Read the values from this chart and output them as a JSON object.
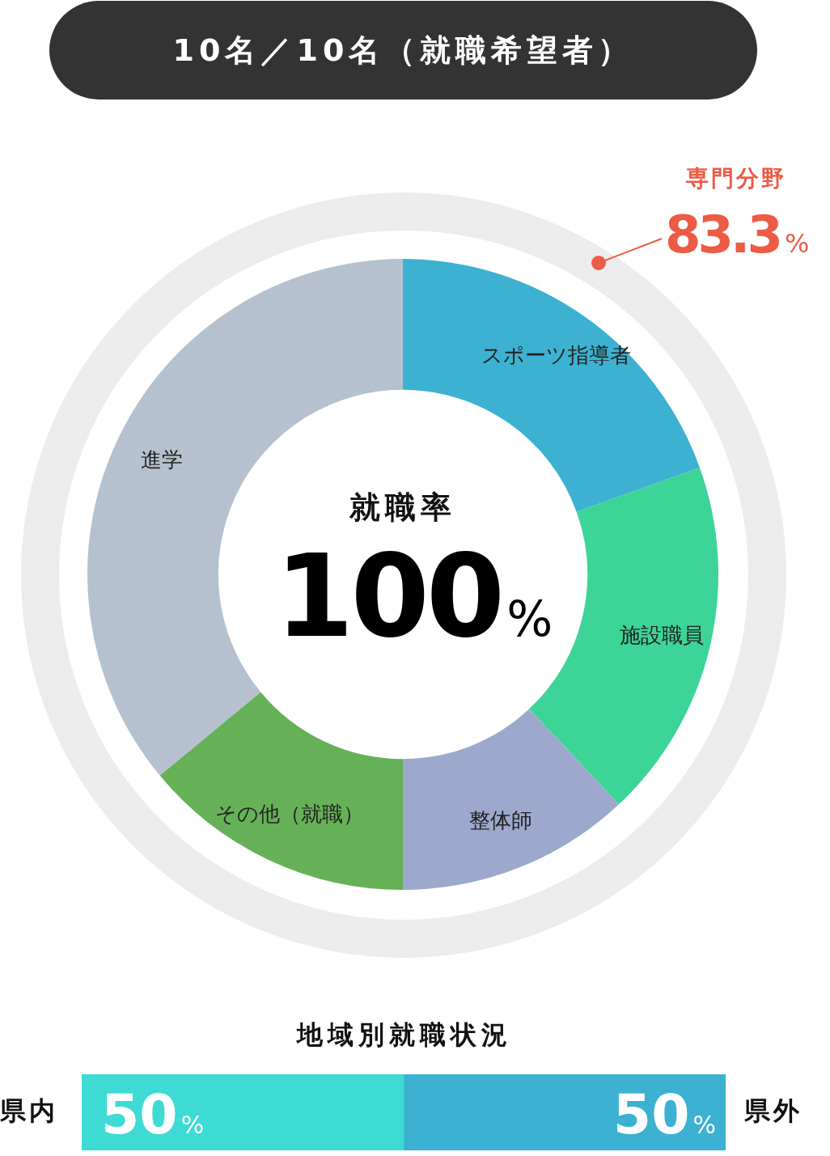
{
  "chart_data": [
    {
      "type": "donut",
      "title": "10名／10名（就職希望者）",
      "categories": [
        "スポーツ指導者",
        "施設職員",
        "整体師",
        "その他（就職）",
        "進学"
      ],
      "values": [
        19.5,
        18.5,
        12,
        14,
        36
      ],
      "colors": [
        "#3db1d1",
        "#3dd498",
        "#9da9cc",
        "#66b157",
        "#b6c1cf"
      ],
      "annotations": [
        "専門分野",
        "83.3%",
        "就職率",
        "100%"
      ],
      "legend": false
    },
    {
      "type": "bar",
      "orientation": "horizontal",
      "stacked": true,
      "title": "地域別就職状況",
      "categories": [
        null
      ],
      "series": [
        {
          "name": "県内",
          "color": "#3ddbd3",
          "values": [
            50
          ],
          "value_labels": [
            "50%"
          ]
        },
        {
          "name": "県外",
          "color": "#3cb1d1",
          "values": [
            50
          ],
          "value_labels": [
            "50%"
          ]
        }
      ],
      "legend": false
    }
  ]
}
